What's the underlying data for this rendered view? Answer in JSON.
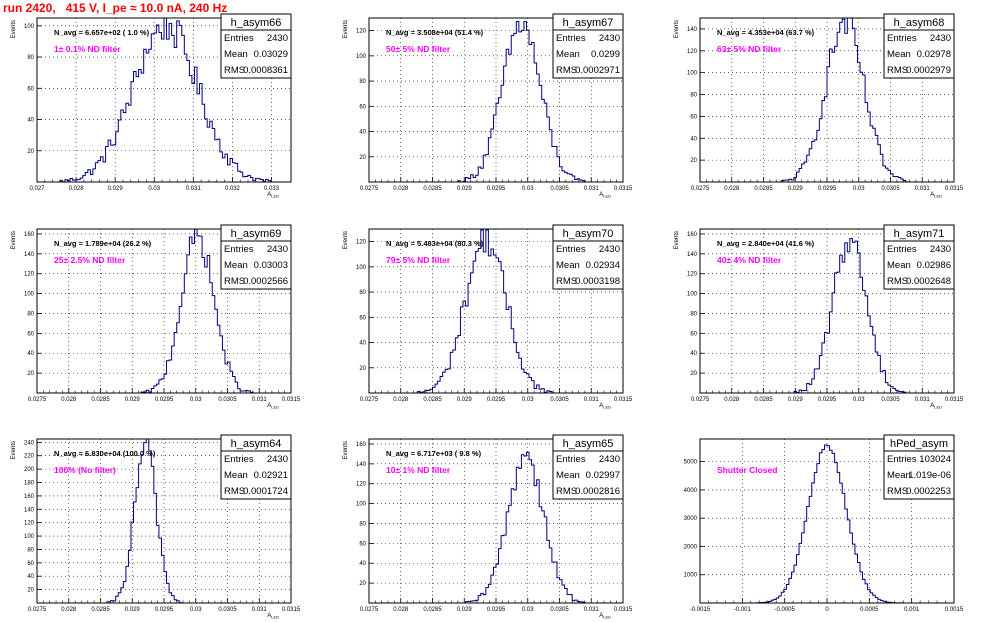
{
  "page_title": "run 2420,   415 V, I_pe ≈ 10.0 nA, 240 Hz",
  "stat_labels": {
    "entries": "Entries",
    "mean": "Mean",
    "rms": "RMS"
  },
  "colors": {
    "histogram": "#000080",
    "title": "#ff0000",
    "filter_label": "#ff00ff",
    "frame": "#000000"
  },
  "chart_data": [
    {
      "type": "histogram",
      "name": "h_asym66",
      "annotation": "N_avg = 6.657e+02 ( 1.0 %)",
      "filter_label": "1± 0.1% ND filter",
      "stats": {
        "entries": "2430",
        "mean": "0.03029",
        "rms": "0.0008361"
      },
      "ylabel": "Events",
      "xlabel": "A_LED",
      "xlim": [
        0.027,
        0.0335
      ],
      "ylim": [
        0,
        105
      ],
      "xticks": [
        "0.027",
        "0.028",
        "0.029",
        "0.03",
        "0.031",
        "0.032",
        "0.033"
      ],
      "yticks": [
        "20",
        "40",
        "60",
        "80",
        "100"
      ],
      "mean": 0.03029,
      "sigma": 0.00083,
      "peak": 100
    },
    {
      "type": "histogram",
      "name": "h_asym67",
      "annotation": "N_avg = 3.508e+04 (51.4 %)",
      "filter_label": "50± 5% ND filter",
      "stats": {
        "entries": "2430",
        "mean": "0.0299",
        "rms": "0.0002971"
      },
      "ylabel": "Events",
      "xlabel": "A_LED",
      "xlim": [
        0.0275,
        0.0315
      ],
      "ylim": [
        0,
        130
      ],
      "xticks": [
        "0.0275",
        "0.028",
        "0.0285",
        "0.029",
        "0.0295",
        "0.03",
        "0.0305",
        "0.031",
        "0.0315"
      ],
      "yticks": [
        "20",
        "40",
        "60",
        "80",
        "100",
        "120"
      ],
      "mean": 0.0299,
      "sigma": 0.0003,
      "peak": 125
    },
    {
      "type": "histogram",
      "name": "h_asym68",
      "annotation": "N_avg = 4.353e+04 (63.7 %)",
      "filter_label": "63± 5% ND filter",
      "stats": {
        "entries": "2430",
        "mean": "0.02978",
        "rms": "0.0002979"
      },
      "ylabel": "Events",
      "xlabel": "A_LED",
      "xlim": [
        0.0275,
        0.0315
      ],
      "ylim": [
        0,
        150
      ],
      "xticks": [
        "0.0275",
        "0.028",
        "0.0285",
        "0.029",
        "0.0295",
        "0.03",
        "0.0305",
        "0.031",
        "0.0315"
      ],
      "yticks": [
        "20",
        "40",
        "60",
        "80",
        "100",
        "120",
        "140"
      ],
      "mean": 0.02978,
      "sigma": 0.0003,
      "peak": 145
    },
    {
      "type": "histogram",
      "name": "h_asym69",
      "annotation": "N_avg = 1.789e+04 (26.2 %)",
      "filter_label": "25± 2.5% ND filter",
      "stats": {
        "entries": "2430",
        "mean": "0.03003",
        "rms": "0.0002566"
      },
      "ylabel": "Events",
      "xlabel": "A_LED",
      "xlim": [
        0.0275,
        0.0315
      ],
      "ylim": [
        0,
        165
      ],
      "xticks": [
        "0.0275",
        "0.028",
        "0.0285",
        "0.029",
        "0.0295",
        "0.03",
        "0.0305",
        "0.031",
        "0.0315"
      ],
      "yticks": [
        "20",
        "40",
        "60",
        "80",
        "100",
        "120",
        "140",
        "160"
      ],
      "mean": 0.03003,
      "sigma": 0.000257,
      "peak": 158
    },
    {
      "type": "histogram",
      "name": "h_asym70",
      "annotation": "N_avg = 5.483e+04 (80.3 %)",
      "filter_label": "79± 5% ND filter",
      "stats": {
        "entries": "2430",
        "mean": "0.02934",
        "rms": "0.0003198"
      },
      "ylabel": "Events",
      "xlabel": "A_LED",
      "xlim": [
        0.0275,
        0.0315
      ],
      "ylim": [
        0,
        130
      ],
      "xticks": [
        "0.0275",
        "0.028",
        "0.0285",
        "0.029",
        "0.0295",
        "0.03",
        "0.0305",
        "0.031",
        "0.0315"
      ],
      "yticks": [
        "20",
        "40",
        "60",
        "80",
        "100",
        "120"
      ],
      "mean": 0.02934,
      "sigma": 0.00032,
      "peak": 122
    },
    {
      "type": "histogram",
      "name": "h_asym71",
      "annotation": "N_avg = 2.840e+04 (41.6 %)",
      "filter_label": "40± 4% ND filter",
      "stats": {
        "entries": "2430",
        "mean": "0.02986",
        "rms": "0.0002648"
      },
      "ylabel": "Events",
      "xlabel": "A_LED",
      "xlim": [
        0.0275,
        0.0315
      ],
      "ylim": [
        0,
        165
      ],
      "xticks": [
        "0.0275",
        "0.028",
        "0.0285",
        "0.029",
        "0.0295",
        "0.03",
        "0.0305",
        "0.031",
        "0.0315"
      ],
      "yticks": [
        "20",
        "40",
        "60",
        "80",
        "100",
        "120",
        "140",
        "160"
      ],
      "mean": 0.02986,
      "sigma": 0.000265,
      "peak": 155
    },
    {
      "type": "histogram",
      "name": "h_asym64",
      "annotation": "N_avg = 6.830e+04 (100.0 %)",
      "filter_label": "100% (No filter)",
      "stats": {
        "entries": "2430",
        "mean": "0.02921",
        "rms": "0.0001724"
      },
      "ylabel": "Events",
      "xlabel": "A_LED",
      "xlim": [
        0.0275,
        0.0315
      ],
      "ylim": [
        0,
        245
      ],
      "xticks": [
        "0.0275",
        "0.028",
        "0.0285",
        "0.029",
        "0.0295",
        "0.03",
        "0.0305",
        "0.031",
        "0.0315"
      ],
      "yticks": [
        "20",
        "40",
        "60",
        "80",
        "100",
        "120",
        "140",
        "160",
        "180",
        "200",
        "220",
        "240"
      ],
      "mean": 0.02921,
      "sigma": 0.000172,
      "peak": 235
    },
    {
      "type": "histogram",
      "name": "h_asym65",
      "annotation": "N_avg = 6.717e+03 ( 9.8 %)",
      "filter_label": "10± 1% ND filter",
      "stats": {
        "entries": "2430",
        "mean": "0.02997",
        "rms": "0.0002816"
      },
      "ylabel": "Events",
      "xlabel": "A_LED",
      "xlim": [
        0.0275,
        0.0315
      ],
      "ylim": [
        0,
        165
      ],
      "xticks": [
        "0.0275",
        "0.028",
        "0.0285",
        "0.029",
        "0.0295",
        "0.03",
        "0.0305",
        "0.031",
        "0.0315"
      ],
      "yticks": [
        "20",
        "40",
        "60",
        "80",
        "100",
        "120",
        "140",
        "160"
      ],
      "mean": 0.02997,
      "sigma": 0.00028,
      "peak": 150
    },
    {
      "type": "histogram",
      "name": "hPed_asym",
      "annotation": "",
      "filter_label": "Shutter Closed",
      "stats": {
        "entries": "103024",
        "mean": "1.019e-06",
        "rms": "0.0002253"
      },
      "ylabel": "",
      "xlabel": "",
      "xlim": [
        -0.0015,
        0.0015
      ],
      "ylim": [
        0,
        5800
      ],
      "xticks": [
        "-0.0015",
        "-0.001",
        "-0.0005",
        "0",
        "0.0005",
        "0.001",
        "0.0015"
      ],
      "yticks": [
        "1000",
        "2000",
        "3000",
        "4000",
        "5000"
      ],
      "mean": 1e-06,
      "sigma": 0.000225,
      "peak": 5550
    }
  ]
}
